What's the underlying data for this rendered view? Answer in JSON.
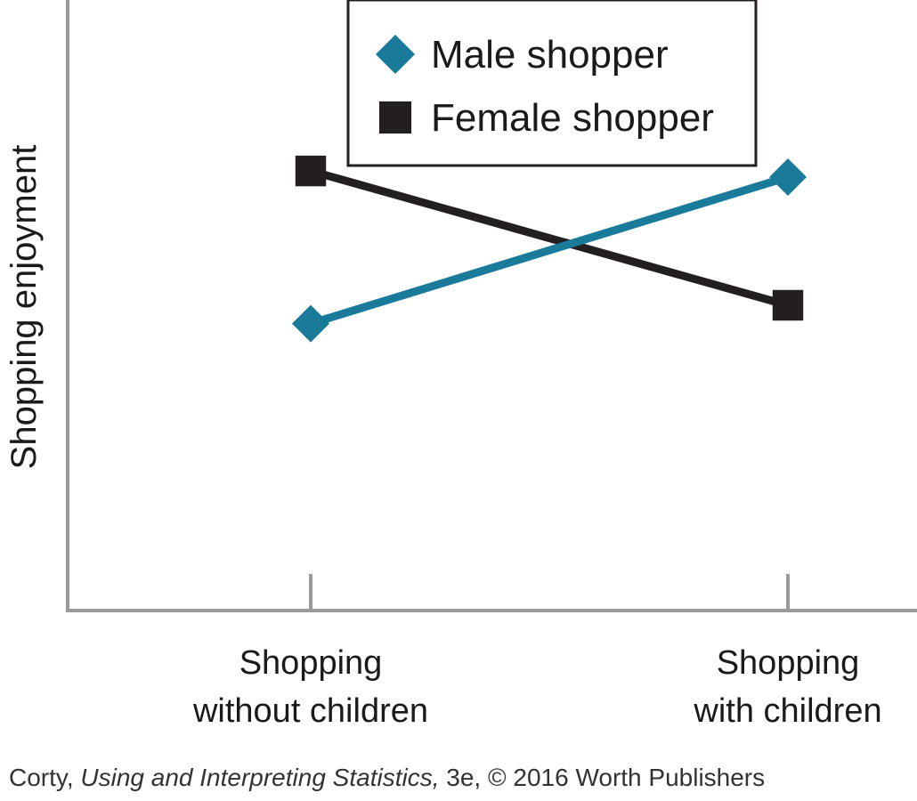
{
  "chart_data": {
    "type": "line",
    "categories": [
      "Shopping without children",
      "Shopping with children"
    ],
    "category_lines": [
      [
        "Shopping",
        "without children"
      ],
      [
        "Shopping",
        "with children"
      ]
    ],
    "ylabel": "Shopping enjoyment",
    "xlabel": "",
    "ylim": [
      0,
      10
    ],
    "legend_position": "top",
    "series": [
      {
        "name": "Male shopper",
        "marker": "diamond",
        "color": "#1a7a9a",
        "values": [
          4.7,
          7.1
        ]
      },
      {
        "name": "Female shopper",
        "marker": "square",
        "color": "#231f20",
        "values": [
          7.2,
          5.0
        ]
      }
    ]
  },
  "credit": {
    "author": "Corty,",
    "book": "Using and Interpreting Statistics,",
    "rest": "3e, © 2016 Worth Publishers"
  }
}
